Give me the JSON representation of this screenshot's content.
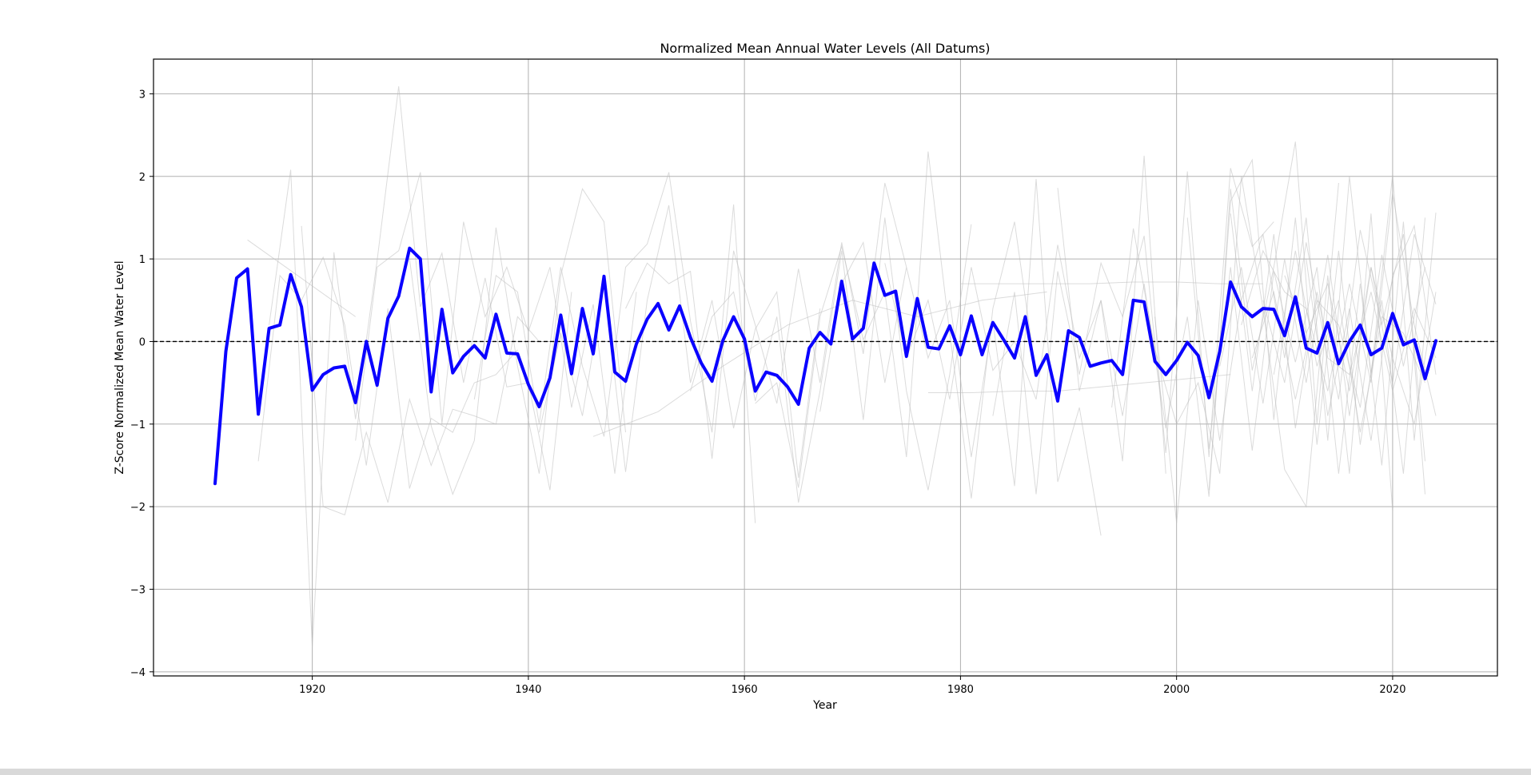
{
  "chart_data": {
    "type": "line",
    "title": "Normalized Mean Annual Water Levels (All Datums)",
    "xlabel": "Year",
    "ylabel": "Z-Score Normalized Mean Water Level",
    "xlim": [
      1905.3,
      2029.7
    ],
    "ylim": [
      -4.05,
      3.42
    ],
    "x_ticks": [
      1920,
      1940,
      1960,
      1980,
      2000,
      2020
    ],
    "y_ticks": [
      3,
      2,
      1,
      0,
      -1,
      -2,
      -3,
      -4
    ],
    "y_tick_labels": [
      "3",
      "2",
      "1",
      "0",
      "−1",
      "−2",
      "−3",
      "−4"
    ],
    "grid": true,
    "reference_line": {
      "y": 0,
      "style": "dashed",
      "color": "#000000"
    },
    "colors": {
      "mean": "#0a00ff",
      "individual": "#bdbdbd"
    },
    "mean_series": {
      "x": [
        1911,
        1912,
        1913,
        1914,
        1915,
        1916,
        1917,
        1918,
        1919,
        1920,
        1921,
        1922,
        1923,
        1924,
        1925,
        1926,
        1927,
        1928,
        1929,
        1930,
        1931,
        1932,
        1933,
        1934,
        1935,
        1936,
        1937,
        1938,
        1939,
        1940,
        1941,
        1942,
        1943,
        1944,
        1945,
        1946,
        1947,
        1948,
        1949,
        1950,
        1951,
        1952,
        1953,
        1954,
        1955,
        1956,
        1957,
        1958,
        1959,
        1960,
        1961,
        1962,
        1963,
        1964,
        1965,
        1966,
        1967,
        1968,
        1969,
        1970,
        1971,
        1972,
        1973,
        1974,
        1975,
        1976,
        1977,
        1978,
        1979,
        1980,
        1981,
        1982,
        1983,
        1984,
        1985,
        1986,
        1987,
        1988,
        1989,
        1990,
        1991,
        1992,
        1993,
        1994,
        1995,
        1996,
        1997,
        1998,
        1999,
        2000,
        2001,
        2002,
        2003,
        2004,
        2005,
        2006,
        2007,
        2008,
        2009,
        2010,
        2011,
        2012,
        2013,
        2014,
        2015,
        2016,
        2017,
        2018,
        2019,
        2020,
        2021,
        2022,
        2023,
        2024
      ],
      "y": [
        -1.72,
        -0.12,
        0.77,
        0.88,
        -0.88,
        0.16,
        0.2,
        0.81,
        0.42,
        -0.59,
        -0.4,
        -0.32,
        -0.3,
        -0.74,
        0.0,
        -0.53,
        0.28,
        0.55,
        1.13,
        1.0,
        -0.61,
        0.39,
        -0.38,
        -0.18,
        -0.05,
        -0.2,
        0.33,
        -0.14,
        -0.15,
        -0.52,
        -0.79,
        -0.44,
        0.32,
        -0.39,
        0.4,
        -0.15,
        0.79,
        -0.37,
        -0.48,
        -0.03,
        0.27,
        0.46,
        0.14,
        0.43,
        0.05,
        -0.26,
        -0.48,
        0.01,
        0.3,
        0.03,
        -0.6,
        -0.37,
        -0.41,
        -0.55,
        -0.76,
        -0.08,
        0.11,
        -0.03,
        0.73,
        0.03,
        0.16,
        0.95,
        0.56,
        0.61,
        -0.18,
        0.52,
        -0.07,
        -0.09,
        0.19,
        -0.16,
        0.31,
        -0.16,
        0.23,
        0.02,
        -0.2,
        0.3,
        -0.41,
        -0.16,
        -0.72,
        0.13,
        0.05,
        -0.3,
        -0.26,
        -0.23,
        -0.4,
        0.5,
        0.48,
        -0.24,
        -0.4,
        -0.23,
        -0.01,
        -0.17,
        -0.68,
        -0.12,
        0.72,
        0.42,
        0.3,
        0.4,
        0.39,
        0.07,
        0.54,
        -0.08,
        -0.14,
        0.23,
        -0.27,
        0.0,
        0.2,
        -0.16,
        -0.08,
        0.34,
        -0.04,
        0.02,
        -0.45,
        0.01
      ]
    },
    "background_series": [
      {
        "x": [
          1914,
          1924
        ],
        "y": [
          1.23,
          0.3
        ]
      },
      {
        "x": [
          1915,
          1917,
          1919,
          1921,
          1923,
          1925,
          1927,
          1929,
          1931,
          1933,
          1935,
          1937,
          1939
        ],
        "y": [
          -1.45,
          0.8,
          0.5,
          1.02,
          0.2,
          -1.5,
          0.4,
          -1.78,
          -0.93,
          -1.1,
          -0.5,
          -0.4,
          -0.1
        ]
      },
      {
        "x": [
          1916,
          1918,
          1920,
          1922,
          1924,
          1926,
          1928,
          1930,
          1932,
          1934,
          1936,
          1938,
          1940,
          1942,
          1944
        ],
        "y": [
          0.2,
          2.08,
          -3.7,
          1.08,
          -0.94,
          0.98,
          3.09,
          0.42,
          1.07,
          -0.5,
          0.77,
          -0.55,
          -0.5,
          -1.8,
          0.6
        ]
      },
      {
        "x": [
          1919,
          1921,
          1923,
          1925,
          1927,
          1929,
          1931,
          1933,
          1935,
          1937,
          1939,
          1941
        ],
        "y": [
          1.4,
          -2.0,
          -2.1,
          -1.1,
          -1.95,
          -0.7,
          -1.5,
          -0.82,
          -0.9,
          -1.0,
          0.3,
          0.0
        ]
      },
      {
        "x": [
          1924,
          1926,
          1928,
          1930,
          1932,
          1934,
          1936,
          1938,
          1940,
          1942,
          1944,
          1946,
          1948,
          1950
        ],
        "y": [
          -1.2,
          0.9,
          1.1,
          2.05,
          -1.0,
          1.45,
          0.3,
          0.9,
          0.12,
          0.9,
          -0.8,
          0.45,
          -1.6,
          0.6
        ]
      },
      {
        "x": [
          1929,
          1931,
          1933,
          1935,
          1937,
          1939,
          1941,
          1943,
          1945,
          1947,
          1949
        ],
        "y": [
          1.0,
          -1.02,
          -1.85,
          -1.2,
          1.38,
          -0.3,
          -1.6,
          0.8,
          1.85,
          1.45,
          -1.1
        ]
      },
      {
        "x": [
          1935,
          1937,
          1939,
          1941,
          1943,
          1945,
          1947,
          1949,
          1951,
          1953,
          1955,
          1957,
          1959,
          1961
        ],
        "y": [
          -0.7,
          0.8,
          0.6,
          -1.0,
          0.9,
          -0.3,
          -1.15,
          0.9,
          1.18,
          2.05,
          0.25,
          -1.1,
          1.66,
          -2.2
        ]
      },
      {
        "x": [
          1941,
          1943,
          1945,
          1947,
          1949,
          1951,
          1953,
          1955,
          1957,
          1959,
          1961,
          1963,
          1965,
          1967
        ],
        "y": [
          -1.1,
          0.1,
          -0.9,
          0.7,
          -1.58,
          0.5,
          1.65,
          -0.5,
          0.5,
          -1.05,
          0.15,
          0.6,
          -1.65,
          0.4
        ]
      },
      {
        "x": [
          1946,
          1952,
          1958,
          1964,
          1970,
          1976,
          1982,
          1988
        ],
        "y": [
          -1.15,
          -0.85,
          -0.3,
          0.2,
          0.5,
          0.3,
          0.5,
          0.6
        ]
      },
      {
        "x": [
          1949,
          1951,
          1953,
          1955,
          1957,
          1959,
          1961,
          1963,
          1965,
          1967,
          1969,
          1971,
          1973,
          1975
        ],
        "y": [
          0.4,
          0.95,
          0.7,
          0.85,
          -1.42,
          1.1,
          0.2,
          -0.75,
          0.88,
          -0.5,
          1.2,
          -0.15,
          1.92,
          0.9
        ]
      },
      {
        "x": [
          1955,
          1957,
          1959,
          1961,
          1963,
          1965,
          1967,
          1969,
          1971,
          1973,
          1975,
          1977,
          1979,
          1981
        ],
        "y": [
          -0.6,
          0.3,
          0.6,
          -0.72,
          0.3,
          -1.95,
          -0.6,
          1.1,
          -0.95,
          1.5,
          -0.6,
          -1.8,
          -0.4,
          1.42
        ]
      },
      {
        "x": [
          1961,
          1963,
          1965,
          1967,
          1969,
          1971,
          1973,
          1975,
          1977,
          1979,
          1981,
          1983,
          1985,
          1987
        ],
        "y": [
          -0.75,
          -0.5,
          -1.77,
          0.3,
          1.15,
          0.02,
          0.6,
          -1.4,
          2.3,
          0.1,
          -1.9,
          0.4,
          1.45,
          -0.4
        ]
      },
      {
        "x": [
          1967,
          1969,
          1971,
          1973,
          1975,
          1977,
          1979,
          1981,
          1983,
          1985,
          1987,
          1989,
          1991,
          1993
        ],
        "y": [
          -0.85,
          0.7,
          1.2,
          -0.5,
          0.9,
          -0.2,
          0.5,
          -1.4,
          0.25,
          -1.75,
          1.97,
          -1.7,
          -0.8,
          -2.35
        ]
      },
      {
        "x": [
          1973,
          1975,
          1977,
          1979,
          1981,
          1983,
          1985,
          1987,
          1989,
          1991,
          1993,
          1995,
          1997,
          1999
        ],
        "y": [
          0.95,
          -0.2,
          0.5,
          -0.7,
          0.9,
          -0.35,
          0.0,
          -0.7,
          1.17,
          -0.2,
          0.5,
          -1.45,
          2.25,
          -1.6
        ]
      },
      {
        "x": [
          1977,
          1981,
          1985,
          1989,
          1993,
          1997,
          2001,
          2005
        ],
        "y": [
          -0.62,
          -0.62,
          -0.6,
          -0.6,
          -0.55,
          -0.5,
          -0.45,
          -0.4
        ]
      },
      {
        "x": [
          1980,
          1984,
          1988,
          1992,
          1996,
          2000,
          2004,
          2008
        ],
        "y": [
          0.7,
          0.7,
          0.7,
          0.7,
          0.72,
          0.72,
          0.7,
          0.7
        ]
      },
      {
        "x": [
          1983,
          1985,
          1987,
          1989,
          1991,
          1993,
          1995,
          1997,
          1999,
          2001,
          2003,
          2005,
          2007,
          2009
        ],
        "y": [
          -0.9,
          0.6,
          -1.85,
          0.85,
          -0.4,
          0.95,
          0.3,
          1.28,
          -1.35,
          2.06,
          -1.4,
          2.1,
          1.15,
          1.45
        ]
      },
      {
        "x": [
          1989,
          1991,
          1993,
          1995,
          1997,
          1999,
          2001,
          2003,
          2005,
          2007,
          2009,
          2011,
          2013,
          2015
        ],
        "y": [
          1.86,
          -0.6,
          0.5,
          -0.9,
          0.7,
          -1.05,
          0.3,
          -1.88,
          1.85,
          -0.35,
          0.9,
          2.42,
          -1.0,
          1.92
        ]
      },
      {
        "x": [
          1994,
          1996,
          1998,
          2000,
          2002,
          2004,
          2006,
          2008,
          2010,
          2012,
          2014,
          2016,
          2018,
          2020
        ],
        "y": [
          -0.8,
          1.37,
          -0.1,
          -1.0,
          -0.5,
          -1.6,
          2.0,
          0.4,
          -1.55,
          -2.0,
          0.8,
          -1.6,
          1.55,
          -2.05
        ]
      },
      {
        "x": [
          1998,
          2000,
          2002,
          2004,
          2006,
          2008,
          2010,
          2012,
          2014,
          2016,
          2018,
          2020,
          2022,
          2024
        ],
        "y": [
          0.3,
          -2.2,
          0.5,
          -1.2,
          0.5,
          1.3,
          -0.2,
          1.5,
          -1.2,
          2.0,
          -0.4,
          2.02,
          -1.2,
          1.56
        ]
      },
      {
        "x": [
          2001,
          2003,
          2005,
          2007,
          2009,
          2011,
          2013,
          2015,
          2017,
          2019,
          2021,
          2023
        ],
        "y": [
          1.5,
          -1.3,
          0.9,
          -1.32,
          0.85,
          -0.25,
          0.9,
          -1.6,
          0.7,
          -1.5,
          1.45,
          -1.85
        ]
      },
      {
        "x": [
          2003,
          2005,
          2007,
          2009,
          2011,
          2013,
          2015,
          2017,
          2019,
          2021,
          2023
        ],
        "y": [
          -1.8,
          1.7,
          2.2,
          -0.95,
          1.5,
          -1.25,
          1.1,
          -1.25,
          0.5,
          -1.6,
          1.5
        ]
      },
      {
        "x": [
          2005,
          2007,
          2009,
          2011,
          2013,
          2015,
          2017,
          2019,
          2021,
          2023
        ],
        "y": [
          1.55,
          -0.6,
          1.3,
          -1.05,
          0.6,
          -0.7,
          1.35,
          0.2,
          1.3,
          -1.45
        ]
      },
      {
        "x": [
          2006,
          2008,
          2010,
          2012,
          2014,
          2016,
          2018,
          2020,
          2022,
          2024
        ],
        "y": [
          0.2,
          1.1,
          0.6,
          0.4,
          -0.6,
          0.7,
          -0.5,
          1.8,
          0.2,
          -0.9
        ]
      },
      {
        "x": [
          2004,
          2006,
          2008,
          2010,
          2012,
          2014,
          2016,
          2018,
          2020,
          2022,
          2024
        ],
        "y": [
          -0.3,
          0.9,
          -0.75,
          1.0,
          -0.5,
          1.05,
          -0.9,
          0.9,
          -0.5,
          1.3,
          0.45
        ]
      },
      {
        "x": [
          2007,
          2009,
          2011,
          2013,
          2015,
          2017,
          2019,
          2021,
          2023
        ],
        "y": [
          -0.2,
          0.6,
          -0.7,
          0.5,
          0.2,
          -0.8,
          1.05,
          -0.3,
          0.9
        ]
      },
      {
        "x": [
          2008,
          2010,
          2012,
          2014,
          2016,
          2018,
          2020,
          2022,
          2024
        ],
        "y": [
          0.5,
          -0.5,
          1.2,
          -0.2,
          -0.4,
          0.6,
          -0.6,
          0.4,
          -0.2
        ]
      },
      {
        "x": [
          2009,
          2011,
          2013,
          2015,
          2017,
          2019,
          2021,
          2023
        ],
        "y": [
          -0.4,
          1.1,
          -0.3,
          0.5,
          -1.1,
          0.3,
          0.1,
          -0.5
        ]
      },
      {
        "x": [
          2010,
          2012,
          2014,
          2016,
          2018,
          2020,
          2022,
          2024
        ],
        "y": [
          0.8,
          0.1,
          0.7,
          -0.6,
          0.9,
          -0.2,
          -1.0,
          0.6
        ]
      },
      {
        "x": [
          2012,
          2014,
          2016,
          2018,
          2020,
          2022,
          2024
        ],
        "y": [
          1.0,
          -0.9,
          0.4,
          -1.2,
          0.8,
          1.4,
          -0.4
        ]
      }
    ]
  }
}
